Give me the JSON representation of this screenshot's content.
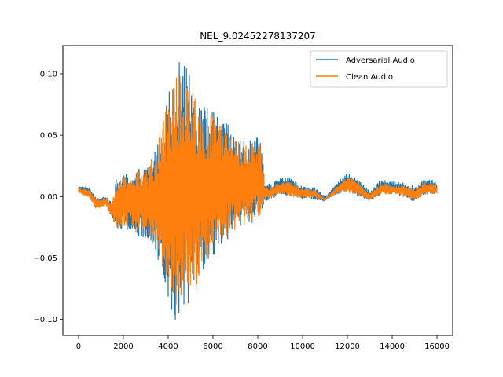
{
  "chart_data": {
    "type": "line",
    "title": "NEL_9.02452278137207",
    "xlabel": "",
    "ylabel": "",
    "xlim": [
      -700,
      16700
    ],
    "ylim": [
      -0.113,
      0.123
    ],
    "xticks": [
      0,
      2000,
      4000,
      6000,
      8000,
      10000,
      12000,
      14000,
      16000
    ],
    "xtick_labels": [
      "0",
      "2000",
      "4000",
      "6000",
      "8000",
      "10000",
      "12000",
      "14000",
      "16000"
    ],
    "yticks": [
      -0.1,
      -0.05,
      0.0,
      0.05,
      0.1
    ],
    "ytick_labels": [
      "−0.10",
      "−0.05",
      "0.00",
      "0.05",
      "0.10"
    ],
    "grid": false,
    "legend_position": "top-right",
    "num_samples": 16000,
    "series": [
      {
        "name": "Adversarial Audio",
        "color": "#1f77b4",
        "envelope_max": [
          [
            0,
            0.009
          ],
          [
            500,
            0.007
          ],
          [
            800,
            -0.002
          ],
          [
            1200,
            0.0
          ],
          [
            1500,
            -0.004
          ],
          [
            1700,
            0.016
          ],
          [
            2000,
            0.018
          ],
          [
            2500,
            0.022
          ],
          [
            3000,
            0.025
          ],
          [
            3500,
            0.045
          ],
          [
            3800,
            0.07
          ],
          [
            4000,
            0.085
          ],
          [
            4300,
            0.114
          ],
          [
            4500,
            0.11
          ],
          [
            4800,
            0.106
          ],
          [
            5000,
            0.1
          ],
          [
            5300,
            0.088
          ],
          [
            5600,
            0.075
          ],
          [
            6000,
            0.07
          ],
          [
            6300,
            0.066
          ],
          [
            6600,
            0.06
          ],
          [
            7000,
            0.05
          ],
          [
            7500,
            0.045
          ],
          [
            8000,
            0.048
          ],
          [
            8200,
            0.04
          ],
          [
            8300,
            0.012
          ],
          [
            8600,
            0.01
          ],
          [
            9000,
            0.016
          ],
          [
            9500,
            0.015
          ],
          [
            10000,
            0.008
          ],
          [
            10500,
            0.008
          ],
          [
            11000,
            0.0
          ],
          [
            11500,
            0.01
          ],
          [
            12000,
            0.02
          ],
          [
            12500,
            0.014
          ],
          [
            13000,
            0.004
          ],
          [
            13500,
            0.014
          ],
          [
            14000,
            0.012
          ],
          [
            14500,
            0.012
          ],
          [
            15000,
            0.008
          ],
          [
            15500,
            0.015
          ],
          [
            16000,
            0.012
          ]
        ],
        "envelope_min": [
          [
            0,
            0.004
          ],
          [
            500,
            0.0
          ],
          [
            800,
            -0.01
          ],
          [
            1200,
            -0.006
          ],
          [
            1500,
            -0.018
          ],
          [
            1700,
            -0.03
          ],
          [
            2000,
            -0.025
          ],
          [
            2500,
            -0.03
          ],
          [
            3000,
            -0.035
          ],
          [
            3500,
            -0.05
          ],
          [
            3800,
            -0.065
          ],
          [
            4000,
            -0.085
          ],
          [
            4300,
            -0.103
          ],
          [
            4500,
            -0.095
          ],
          [
            4800,
            -0.09
          ],
          [
            5000,
            -0.085
          ],
          [
            5300,
            -0.08
          ],
          [
            5600,
            -0.06
          ],
          [
            6000,
            -0.05
          ],
          [
            6300,
            -0.04
          ],
          [
            6600,
            -0.035
          ],
          [
            7000,
            -0.03
          ],
          [
            7500,
            -0.025
          ],
          [
            8000,
            -0.02
          ],
          [
            8200,
            -0.015
          ],
          [
            8300,
            -0.004
          ],
          [
            8600,
            -0.002
          ],
          [
            9000,
            0.002
          ],
          [
            9500,
            0.0
          ],
          [
            10000,
            -0.002
          ],
          [
            10500,
            -0.002
          ],
          [
            11000,
            -0.004
          ],
          [
            11500,
            0.002
          ],
          [
            12000,
            0.004
          ],
          [
            12500,
            0.0
          ],
          [
            13000,
            -0.004
          ],
          [
            13500,
            0.002
          ],
          [
            14000,
            0.002
          ],
          [
            14500,
            0.0
          ],
          [
            15000,
            -0.004
          ],
          [
            15500,
            0.002
          ],
          [
            16000,
            0.002
          ]
        ]
      },
      {
        "name": "Clean Audio",
        "color": "#ff7f0e",
        "envelope_max": [
          [
            0,
            0.007
          ],
          [
            500,
            0.005
          ],
          [
            800,
            -0.003
          ],
          [
            1200,
            -0.001
          ],
          [
            1500,
            -0.005
          ],
          [
            1700,
            0.014
          ],
          [
            2000,
            0.016
          ],
          [
            2500,
            0.02
          ],
          [
            3000,
            0.022
          ],
          [
            3500,
            0.04
          ],
          [
            3800,
            0.065
          ],
          [
            4000,
            0.08
          ],
          [
            4300,
            0.1
          ],
          [
            4500,
            0.1
          ],
          [
            4800,
            0.098
          ],
          [
            5000,
            0.094
          ],
          [
            5300,
            0.082
          ],
          [
            5600,
            0.07
          ],
          [
            6000,
            0.065
          ],
          [
            6300,
            0.06
          ],
          [
            6600,
            0.055
          ],
          [
            7000,
            0.046
          ],
          [
            7500,
            0.042
          ],
          [
            8000,
            0.045
          ],
          [
            8200,
            0.036
          ],
          [
            8300,
            0.009
          ],
          [
            8600,
            0.007
          ],
          [
            9000,
            0.012
          ],
          [
            9500,
            0.012
          ],
          [
            10000,
            0.006
          ],
          [
            10500,
            0.006
          ],
          [
            11000,
            -0.002
          ],
          [
            11500,
            0.008
          ],
          [
            12000,
            0.016
          ],
          [
            12500,
            0.011
          ],
          [
            13000,
            0.002
          ],
          [
            13500,
            0.011
          ],
          [
            14000,
            0.009
          ],
          [
            14500,
            0.009
          ],
          [
            15000,
            0.006
          ],
          [
            15500,
            0.012
          ],
          [
            16000,
            0.009
          ]
        ],
        "envelope_min": [
          [
            0,
            0.003
          ],
          [
            500,
            -0.001
          ],
          [
            800,
            -0.011
          ],
          [
            1200,
            -0.007
          ],
          [
            1500,
            -0.017
          ],
          [
            1700,
            -0.028
          ],
          [
            2000,
            -0.023
          ],
          [
            2500,
            -0.028
          ],
          [
            3000,
            -0.032
          ],
          [
            3500,
            -0.046
          ],
          [
            3800,
            -0.06
          ],
          [
            4000,
            -0.075
          ],
          [
            4300,
            -0.09
          ],
          [
            4500,
            -0.087
          ],
          [
            4800,
            -0.082
          ],
          [
            5000,
            -0.078
          ],
          [
            5300,
            -0.072
          ],
          [
            5600,
            -0.055
          ],
          [
            6000,
            -0.045
          ],
          [
            6300,
            -0.036
          ],
          [
            6600,
            -0.032
          ],
          [
            7000,
            -0.027
          ],
          [
            7500,
            -0.022
          ],
          [
            8000,
            -0.018
          ],
          [
            8200,
            -0.013
          ],
          [
            8300,
            -0.003
          ],
          [
            8600,
            -0.001
          ],
          [
            9000,
            0.002
          ],
          [
            9500,
            0.0
          ],
          [
            10000,
            -0.001
          ],
          [
            10500,
            -0.001
          ],
          [
            11000,
            -0.003
          ],
          [
            11500,
            0.002
          ],
          [
            12000,
            0.004
          ],
          [
            12500,
            0.001
          ],
          [
            13000,
            -0.003
          ],
          [
            13500,
            0.002
          ],
          [
            14000,
            0.002
          ],
          [
            14500,
            0.001
          ],
          [
            15000,
            -0.003
          ],
          [
            15500,
            0.002
          ],
          [
            16000,
            0.002
          ]
        ]
      }
    ]
  }
}
